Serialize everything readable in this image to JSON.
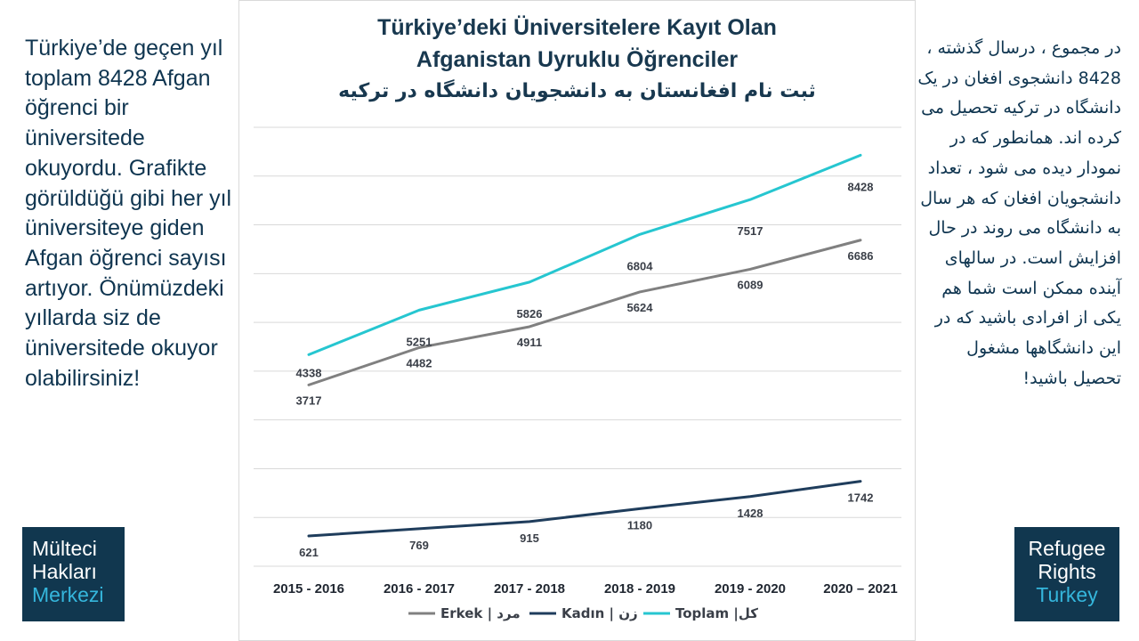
{
  "left_text": "Türkiye’de geçen yıl toplam 8428 Afgan öğrenci bir üniversitede okuyordu. Grafikte görüldüğü gibi her yıl üniversiteye giden Afgan öğrenci sayısı artıyor. Önümüzdeki yıllarda siz de üniversitede okuyor olabilirsiniz!",
  "right_text": "در مجموع ، درسال گذشته ، 8428 دانشجوی افغان در یک دانشگاه در ترکیه تحصیل می کرده اند. همانطور که در نمودار دیده می شود ، تعداد دانشجویان افغان که هر سال به دانشگاه می روند در حال افزایش است. در سالهای آینده ممکن است شما هم یکی از افرادی باشید که در این  دانشگاهها مشغول تحصیل باشید!",
  "logo_left": {
    "line1": "Mülteci",
    "line2": "Hakları",
    "line3": "Merkezi"
  },
  "logo_right": {
    "line1": "Refugee",
    "line2": "Rights",
    "line3": "Turkey"
  },
  "colors": {
    "erkek": "#808080",
    "kadin": "#1f3d5c",
    "toplam": "#26c6d0",
    "brand": "#11374f",
    "accent": "#35b6dc"
  },
  "chart_data": {
    "type": "line",
    "title_line1": "Türkiye’deki Üniversitelere Kayıt Olan",
    "title_line2": "Afganistan Uyruklu Öğrenciler",
    "title_line3": "ثبت نام افغانستان به دانشجویان دانشگاه در ترکیه",
    "categories": [
      "2015 - 2016",
      "2016 - 2017",
      "2017 - 2018",
      "2018 - 2019",
      "2019 - 2020",
      "2020 – 2021"
    ],
    "series": [
      {
        "name": "Erkek  |  مرد",
        "key": "erkek",
        "values": [
          3717,
          4482,
          4911,
          5624,
          6089,
          6686
        ]
      },
      {
        "name": "Kadın  |  زن",
        "key": "kadin",
        "values": [
          621,
          769,
          915,
          1180,
          1428,
          1742
        ]
      },
      {
        "name": "Toplam  |کل",
        "key": "toplam",
        "values": [
          4338,
          5251,
          5826,
          6804,
          7517,
          8428
        ]
      }
    ],
    "ylim": [
      0,
      9000
    ],
    "grid": true,
    "legend": "bottom"
  }
}
